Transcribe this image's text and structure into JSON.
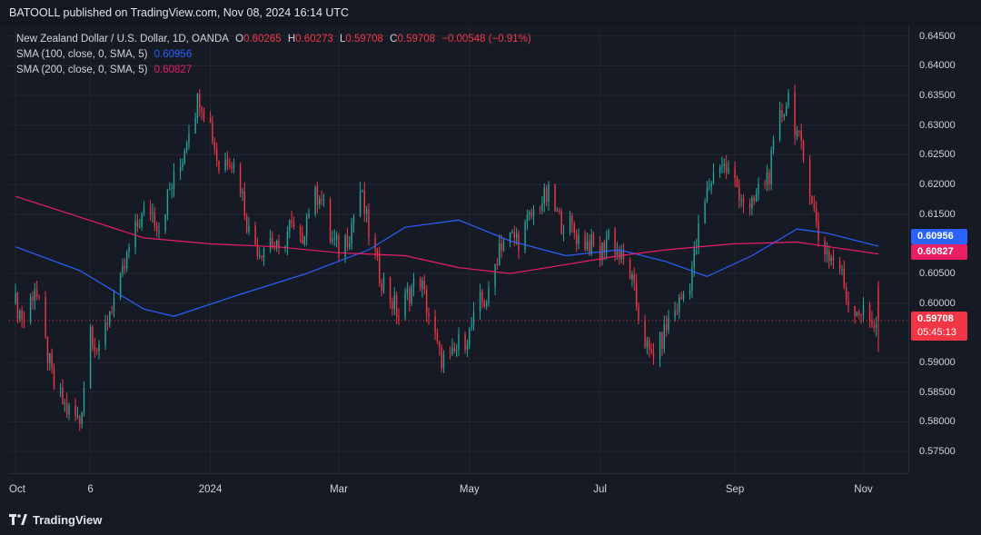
{
  "header": {
    "published_text": "BATOOLL published on TradingView.com, Nov 08, 2024 16:14 UTC"
  },
  "legend": {
    "symbol": "New Zealand Dollar / U.S. Dollar, 1D, OANDA",
    "o_label": "O",
    "o_value": "0.60265",
    "h_label": "H",
    "h_value": "0.60273",
    "l_label": "L",
    "l_value": "0.59708",
    "c_label": "C",
    "c_value": "0.59708",
    "change": "−0.00548 (−0.91%)",
    "sma100_label": "SMA (100, close, 0, SMA, 5)",
    "sma100_value": "0.60956",
    "sma200_label": "SMA (200, close, 0, SMA, 5)",
    "sma200_value": "0.60827"
  },
  "price_tags": {
    "sma100": "0.60956",
    "sma200": "0.60827",
    "last_price": "0.59708",
    "countdown": "05:45:13"
  },
  "footer": {
    "brand": "TradingView"
  },
  "colors": {
    "background": "#161a25",
    "up": "#26a69a",
    "down": "#f23645",
    "sma100": "#2962ff",
    "sma200": "#e91e63"
  },
  "chart_data": {
    "type": "candlestick",
    "title": "New Zealand Dollar / U.S. Dollar, 1D, OANDA",
    "x_tick_labels": [
      "Oct",
      "6",
      "2024",
      "Mar",
      "May",
      "Jul",
      "Sep",
      "Nov"
    ],
    "y_tick_labels": [
      "0.64500",
      "0.64000",
      "0.63500",
      "0.63000",
      "0.62500",
      "0.62000",
      "0.61500",
      "0.60500",
      "0.60000",
      "0.59000",
      "0.58500",
      "0.58000",
      "0.57500"
    ],
    "ylim": [
      0.5715,
      0.6465
    ],
    "grid": true,
    "last_price": 0.59708,
    "price_path": [
      [
        "2023-10-02",
        0.6
      ],
      [
        "2023-10-06",
        0.597
      ],
      [
        "2023-10-11",
        0.603
      ],
      [
        "2023-10-16",
        0.593
      ],
      [
        "2023-10-20",
        0.586
      ],
      [
        "2023-10-26",
        0.582
      ],
      [
        "2023-11-01",
        0.58
      ],
      [
        "2023-11-06",
        0.596
      ],
      [
        "2023-11-10",
        0.591
      ],
      [
        "2023-11-15",
        0.599
      ],
      [
        "2023-11-20",
        0.603
      ],
      [
        "2023-11-24",
        0.609
      ],
      [
        "2023-11-29",
        0.614
      ],
      [
        "2023-12-04",
        0.616
      ],
      [
        "2023-12-08",
        0.613
      ],
      [
        "2023-12-13",
        0.619
      ],
      [
        "2023-12-18",
        0.623
      ],
      [
        "2023-12-22",
        0.63
      ],
      [
        "2023-12-27",
        0.635
      ],
      [
        "2024-01-01",
        0.63
      ],
      [
        "2024-01-05",
        0.623
      ],
      [
        "2024-01-10",
        0.625
      ],
      [
        "2024-01-15",
        0.62
      ],
      [
        "2024-01-19",
        0.612
      ],
      [
        "2024-01-24",
        0.609
      ],
      [
        "2024-01-29",
        0.611
      ],
      [
        "2024-02-02",
        0.608
      ],
      [
        "2024-02-07",
        0.613
      ],
      [
        "2024-02-12",
        0.61
      ],
      [
        "2024-02-16",
        0.616
      ],
      [
        "2024-02-21",
        0.619
      ],
      [
        "2024-02-26",
        0.611
      ],
      [
        "2024-03-01",
        0.609
      ],
      [
        "2024-03-06",
        0.612
      ],
      [
        "2024-03-11",
        0.619
      ],
      [
        "2024-03-15",
        0.612
      ],
      [
        "2024-03-20",
        0.605
      ],
      [
        "2024-03-25",
        0.601
      ],
      [
        "2024-03-29",
        0.598
      ],
      [
        "2024-04-03",
        0.602
      ],
      [
        "2024-04-08",
        0.604
      ],
      [
        "2024-04-12",
        0.598
      ],
      [
        "2024-04-17",
        0.591
      ],
      [
        "2024-04-22",
        0.59
      ],
      [
        "2024-04-26",
        0.593
      ],
      [
        "2024-05-01",
        0.595
      ],
      [
        "2024-05-06",
        0.6
      ],
      [
        "2024-05-10",
        0.601
      ],
      [
        "2024-05-15",
        0.61
      ],
      [
        "2024-05-20",
        0.611
      ],
      [
        "2024-05-24",
        0.611
      ],
      [
        "2024-05-29",
        0.614
      ],
      [
        "2024-06-03",
        0.617
      ],
      [
        "2024-06-07",
        0.618
      ],
      [
        "2024-06-12",
        0.614
      ],
      [
        "2024-06-17",
        0.613
      ],
      [
        "2024-06-21",
        0.611
      ],
      [
        "2024-06-26",
        0.61
      ],
      [
        "2024-07-01",
        0.608
      ],
      [
        "2024-07-05",
        0.612
      ],
      [
        "2024-07-10",
        0.608
      ],
      [
        "2024-07-15",
        0.605
      ],
      [
        "2024-07-19",
        0.598
      ],
      [
        "2024-07-24",
        0.591
      ],
      [
        "2024-07-29",
        0.593
      ],
      [
        "2024-08-02",
        0.597
      ],
      [
        "2024-08-07",
        0.6
      ],
      [
        "2024-08-12",
        0.604
      ],
      [
        "2024-08-16",
        0.612
      ],
      [
        "2024-08-21",
        0.62
      ],
      [
        "2024-08-26",
        0.624
      ],
      [
        "2024-08-30",
        0.622
      ],
      [
        "2024-09-04",
        0.619
      ],
      [
        "2024-09-09",
        0.615
      ],
      [
        "2024-09-13",
        0.619
      ],
      [
        "2024-09-18",
        0.622
      ],
      [
        "2024-09-23",
        0.631
      ],
      [
        "2024-09-27",
        0.635
      ],
      [
        "2024-10-02",
        0.627
      ],
      [
        "2024-10-07",
        0.62
      ],
      [
        "2024-10-11",
        0.611
      ],
      [
        "2024-10-16",
        0.608
      ],
      [
        "2024-10-21",
        0.606
      ],
      [
        "2024-10-25",
        0.6
      ],
      [
        "2024-10-30",
        0.599
      ],
      [
        "2024-11-04",
        0.597
      ],
      [
        "2024-11-08",
        0.597
      ]
    ],
    "series": [
      {
        "name": "SMA (100, close, 0, SMA, 5)",
        "color": "#2962ff",
        "points": [
          [
            "2023-10-02",
            0.6095
          ],
          [
            "2023-11-01",
            0.6055
          ],
          [
            "2023-12-01",
            0.599
          ],
          [
            "2023-12-15",
            0.5978
          ],
          [
            "2024-01-15",
            0.6015
          ],
          [
            "2024-02-15",
            0.605
          ],
          [
            "2024-03-15",
            0.609
          ],
          [
            "2024-04-01",
            0.6128
          ],
          [
            "2024-04-26",
            0.614
          ],
          [
            "2024-05-20",
            0.6105
          ],
          [
            "2024-06-15",
            0.608
          ],
          [
            "2024-07-10",
            0.609
          ],
          [
            "2024-08-01",
            0.607
          ],
          [
            "2024-08-20",
            0.6045
          ],
          [
            "2024-09-10",
            0.608
          ],
          [
            "2024-10-01",
            0.6125
          ],
          [
            "2024-10-15",
            0.6118
          ],
          [
            "2024-11-08",
            0.6096
          ]
        ]
      },
      {
        "name": "SMA (200, close, 0, SMA, 5)",
        "color": "#e91e63",
        "points": [
          [
            "2023-10-02",
            0.618
          ],
          [
            "2023-11-01",
            0.6145
          ],
          [
            "2023-12-01",
            0.611
          ],
          [
            "2024-01-01",
            0.61
          ],
          [
            "2024-02-01",
            0.6095
          ],
          [
            "2024-03-01",
            0.6085
          ],
          [
            "2024-04-01",
            0.608
          ],
          [
            "2024-04-26",
            0.606
          ],
          [
            "2024-05-20",
            0.605
          ],
          [
            "2024-06-15",
            0.6065
          ],
          [
            "2024-07-10",
            0.608
          ],
          [
            "2024-08-01",
            0.609
          ],
          [
            "2024-09-01",
            0.61
          ],
          [
            "2024-10-01",
            0.6103
          ],
          [
            "2024-11-08",
            0.6083
          ]
        ]
      }
    ]
  }
}
